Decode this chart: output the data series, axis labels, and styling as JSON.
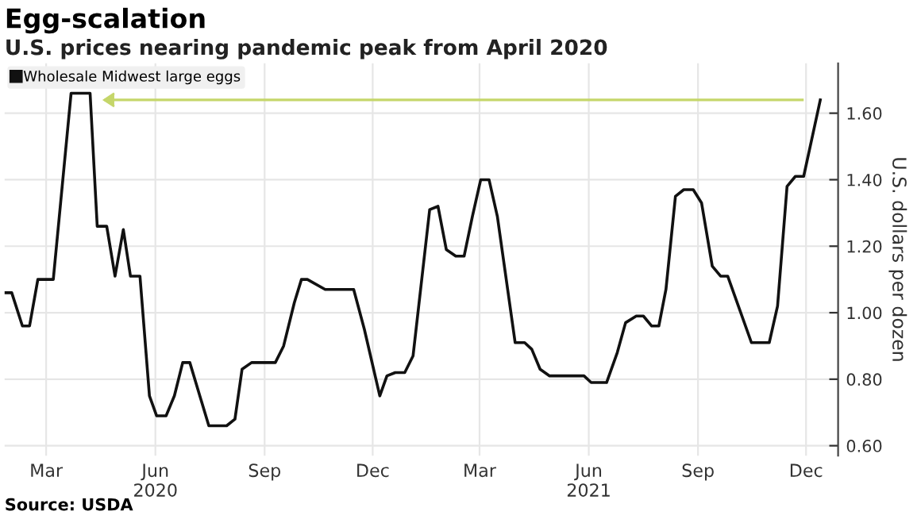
{
  "chart_data": {
    "type": "line",
    "title": "Egg-scalation",
    "subtitle": "U.S. prices nearing pandemic peak from April 2020",
    "ylabel": "U.S. dollars per dozen",
    "annotations": [
      "Source: USDA"
    ],
    "x": [
      "2020-01-26",
      "2020-02-01",
      "2020-02-10",
      "2020-02-16",
      "2020-02-23",
      "2020-03-07",
      "2020-03-22",
      "2020-04-07",
      "2020-04-13",
      "2020-04-21",
      "2020-04-28",
      "2020-05-05",
      "2020-05-11",
      "2020-05-19",
      "2020-05-27",
      "2020-06-02",
      "2020-06-10",
      "2020-06-17",
      "2020-06-24",
      "2020-06-30",
      "2020-07-16",
      "2020-07-31",
      "2020-08-07",
      "2020-08-13",
      "2020-08-21",
      "2020-09-10",
      "2020-09-17",
      "2020-09-26",
      "2020-10-02",
      "2020-10-07",
      "2020-10-22",
      "2020-11-15",
      "2020-11-24",
      "2020-12-07",
      "2020-12-13",
      "2020-12-20",
      "2020-12-28",
      "2021-01-04",
      "2021-01-18",
      "2021-01-25",
      "2021-02-01",
      "2021-02-09",
      "2021-02-16",
      "2021-02-23",
      "2021-03-02",
      "2021-03-09",
      "2021-03-16",
      "2021-03-31",
      "2021-04-08",
      "2021-04-14",
      "2021-04-21",
      "2021-04-29",
      "2021-05-28",
      "2021-06-03",
      "2021-06-16",
      "2021-06-25",
      "2021-07-02",
      "2021-07-11",
      "2021-07-17",
      "2021-07-24",
      "2021-07-30",
      "2021-08-05",
      "2021-08-13",
      "2021-08-20",
      "2021-08-28",
      "2021-09-04",
      "2021-09-13",
      "2021-09-20",
      "2021-09-26",
      "2021-10-05",
      "2021-10-16",
      "2021-10-31",
      "2021-11-07",
      "2021-11-15",
      "2021-11-22",
      "2021-11-29",
      "2021-12-13"
    ],
    "series": [
      {
        "name": "Wholesale Midwest large eggs",
        "color": "#111111",
        "values": [
          1.06,
          1.06,
          0.96,
          0.96,
          1.1,
          1.1,
          1.66,
          1.66,
          1.26,
          1.26,
          1.11,
          1.25,
          1.11,
          1.11,
          0.75,
          0.69,
          0.69,
          0.75,
          0.85,
          0.85,
          0.66,
          0.66,
          0.68,
          0.83,
          0.85,
          0.85,
          0.9,
          1.03,
          1.1,
          1.1,
          1.07,
          1.07,
          0.95,
          0.75,
          0.81,
          0.82,
          0.82,
          0.87,
          1.31,
          1.32,
          1.19,
          1.17,
          1.17,
          1.29,
          1.4,
          1.4,
          1.29,
          0.91,
          0.91,
          0.89,
          0.83,
          0.81,
          0.81,
          0.79,
          0.79,
          0.88,
          0.97,
          0.99,
          0.99,
          0.96,
          0.96,
          1.07,
          1.35,
          1.37,
          1.37,
          1.33,
          1.14,
          1.11,
          1.11,
          1.02,
          0.91,
          0.91,
          1.02,
          1.38,
          1.41,
          1.41,
          1.64
        ]
      }
    ],
    "xlim": [
      "2020-01-26",
      "2021-12-28"
    ],
    "xticks": [
      {
        "value": "2020-03-01",
        "label": "Mar"
      },
      {
        "value": "2020-06-01",
        "label": "Jun\n2020"
      },
      {
        "value": "2020-09-01",
        "label": "Sep"
      },
      {
        "value": "2020-12-01",
        "label": "Dec"
      },
      {
        "value": "2021-03-01",
        "label": "Mar"
      },
      {
        "value": "2021-06-01",
        "label": "Jun\n2021"
      },
      {
        "value": "2021-09-01",
        "label": "Sep"
      },
      {
        "value": "2021-12-01",
        "label": "Dec"
      }
    ],
    "ylim": [
      0.57,
      1.75
    ],
    "yticks": [
      {
        "value": 0.6,
        "label": "0.60"
      },
      {
        "value": 0.8,
        "label": "0.80"
      },
      {
        "value": 1.0,
        "label": "1.00"
      },
      {
        "value": 1.2,
        "label": "1.20"
      },
      {
        "value": 1.4,
        "label": "1.40"
      },
      {
        "value": 1.6,
        "label": "1.60"
      }
    ],
    "ref_lines": [
      {
        "axis": "y",
        "value": 1.64,
        "label": null,
        "color": "#c5d66a"
      }
    ],
    "grid": true,
    "legend": "top left",
    "marker": "none",
    "line_style": "solid"
  }
}
